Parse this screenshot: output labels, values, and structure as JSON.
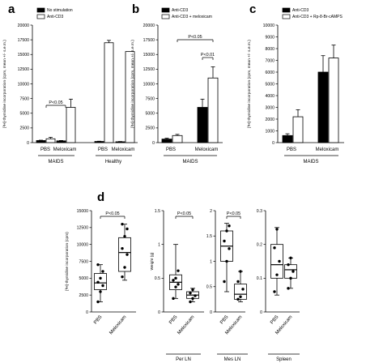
{
  "panels": {
    "a": "a",
    "b": "b",
    "c": "c",
    "d": "d"
  },
  "colors": {
    "black_bar": "#000000",
    "white_bar": "#ffffff",
    "axis": "#000000"
  },
  "chart_data": [
    {
      "id": "a",
      "type": "bar",
      "ylabel": "[³H]-thymidine incorporation (cpm, mean +/- s.e.m.)",
      "ylim": [
        0,
        20000
      ],
      "yticks": [
        "0",
        "2500",
        "5000",
        "7500",
        "10000",
        "12500",
        "15000",
        "17500",
        "20000"
      ],
      "categories": [
        "PBS",
        "Meloxicam",
        "PBS",
        "Meloxicam"
      ],
      "groups": [
        "MAIDS",
        "Healthy"
      ],
      "legend": [
        "No stimulation",
        "Anti-CD3"
      ],
      "series": [
        {
          "name": "No stimulation",
          "values": [
            350,
            300,
            200,
            150
          ],
          "errors": [
            60,
            60,
            40,
            40
          ]
        },
        {
          "name": "Anti-CD3",
          "values": [
            650,
            6000,
            17000,
            15500
          ],
          "errors": [
            250,
            1400,
            400,
            0
          ]
        }
      ],
      "annotations": [
        "P<0.05"
      ]
    },
    {
      "id": "b",
      "type": "bar",
      "ylabel": "[³H]-thymidine incorporation (cpm, mean +/- s.e.m.)",
      "ylim": [
        0,
        20000
      ],
      "yticks": [
        "0",
        "2500",
        "5000",
        "7500",
        "10000",
        "12500",
        "15000",
        "17500",
        "20000"
      ],
      "categories": [
        "PBS",
        "Meloxicam"
      ],
      "groups": [
        "MAIDS"
      ],
      "legend": [
        "Anti-CD3",
        "Anti-CD3 + meloxicam"
      ],
      "series": [
        {
          "name": "Anti-CD3",
          "values": [
            600,
            6000
          ],
          "errors": [
            150,
            1400
          ]
        },
        {
          "name": "Anti-CD3 + meloxicam",
          "values": [
            1200,
            11000
          ],
          "errors": [
            200,
            1900
          ]
        }
      ],
      "annotations": [
        "P<0.05",
        "P<0.01"
      ]
    },
    {
      "id": "c",
      "type": "bar",
      "ylabel": "[³H]-thymidine incorporation (cpm, mean +/- s.e.m.)",
      "ylim": [
        0,
        10000
      ],
      "yticks": [
        "0",
        "1000",
        "2000",
        "3000",
        "4000",
        "5000",
        "6000",
        "7000",
        "8000",
        "9000",
        "10000"
      ],
      "categories": [
        "PBS",
        "Meloxicam"
      ],
      "groups": [
        "MAIDS"
      ],
      "legend": [
        "Anti-CD3",
        "Anti-CD3 + Rp-8-Br-cAMPS"
      ],
      "series": [
        {
          "name": "Anti-CD3",
          "values": [
            600,
            6000
          ],
          "errors": [
            150,
            1400
          ]
        },
        {
          "name": "Anti-CD3 + Rp-8-Br-cAMPS",
          "values": [
            2200,
            7200
          ],
          "errors": [
            600,
            1100
          ]
        }
      ]
    },
    {
      "id": "d1",
      "type": "boxplot",
      "ylabel": "[³H]-thymidine incorporation (cpm)",
      "ylim": [
        0,
        15000
      ],
      "yticks": [
        "0",
        "2500",
        "5000",
        "7500",
        "10000",
        "12500",
        "15000"
      ],
      "categories": [
        "PBS",
        "Meloxicam"
      ],
      "boxes": [
        {
          "min": 1500,
          "q1": 3300,
          "median": 4300,
          "q3": 5700,
          "max": 7000
        },
        {
          "min": 4700,
          "q1": 6000,
          "median": 8800,
          "q3": 11000,
          "max": 13000
        }
      ],
      "points": [
        [
          1500,
          3000,
          3900,
          4400,
          5000,
          6000,
          7000
        ],
        [
          5200,
          6600,
          8500,
          9400,
          11200,
          12300,
          13000
        ]
      ],
      "annotations": [
        "P<0.05"
      ]
    },
    {
      "id": "d2",
      "type": "boxplot",
      "ylabel": "Weight (g)",
      "ylim": [
        0,
        1.5
      ],
      "yticks": [
        "0",
        "0.5",
        "1",
        "1.5"
      ],
      "categories": [
        "PBS",
        "Meloxicam"
      ],
      "group": "Per LN",
      "boxes": [
        {
          "min": 0.2,
          "q1": 0.33,
          "median": 0.44,
          "q3": 0.55,
          "max": 1.0
        },
        {
          "min": 0.15,
          "q1": 0.2,
          "median": 0.25,
          "q3": 0.3,
          "max": 0.35
        }
      ],
      "points": [
        [
          0.2,
          0.37,
          0.41,
          0.47,
          0.5,
          0.61
        ],
        [
          0.15,
          0.2,
          0.24,
          0.28,
          0.33
        ]
      ],
      "annotations": [
        "P<0.05"
      ]
    },
    {
      "id": "d3",
      "type": "boxplot",
      "ylabel": "",
      "ylim": [
        0,
        2
      ],
      "yticks": [
        "0",
        "0.5",
        "1",
        "1.5",
        "2"
      ],
      "categories": [
        "PBS",
        "Meloxicam"
      ],
      "group": "Mes LN",
      "boxes": [
        {
          "min": 0.4,
          "q1": 1.0,
          "median": 1.3,
          "q3": 1.6,
          "max": 1.75
        },
        {
          "min": 0.2,
          "q1": 0.25,
          "median": 0.35,
          "q3": 0.55,
          "max": 0.8
        }
      ],
      "points": [
        [
          0.6,
          1.0,
          1.25,
          1.4,
          1.6,
          1.7
        ],
        [
          0.25,
          0.3,
          0.45,
          0.6,
          0.8
        ]
      ],
      "annotations": [
        "P<0.05"
      ]
    },
    {
      "id": "d4",
      "type": "boxplot",
      "ylabel": "",
      "ylim": [
        0,
        0.3
      ],
      "yticks": [
        "0",
        "0.1",
        "0.2",
        "0.3"
      ],
      "categories": [
        "PBS",
        "Meloxicam"
      ],
      "group": "Spleen",
      "boxes": [
        {
          "min": 0.05,
          "q1": 0.1,
          "median": 0.14,
          "q3": 0.2,
          "max": 0.25
        },
        {
          "min": 0.07,
          "q1": 0.1,
          "median": 0.125,
          "q3": 0.14,
          "max": 0.16
        }
      ],
      "points": [
        [
          0.06,
          0.11,
          0.15,
          0.19,
          0.245
        ],
        [
          0.07,
          0.1,
          0.12,
          0.14,
          0.16
        ]
      ]
    }
  ]
}
